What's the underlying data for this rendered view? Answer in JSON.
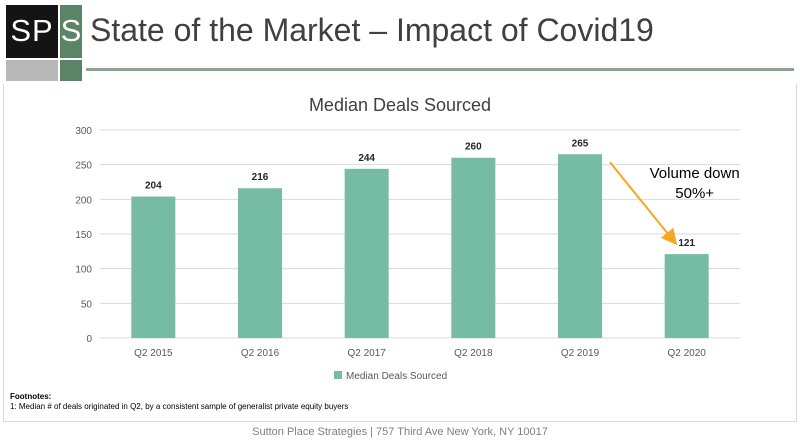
{
  "logo": {
    "left_text": "SP",
    "right_text": "S"
  },
  "slide_title": "State of the Market – Impact of Covid19",
  "chart_data": {
    "type": "bar",
    "title": "Median Deals Sourced",
    "categories": [
      "Q2 2015",
      "Q2 2016",
      "Q2 2017",
      "Q2 2018",
      "Q2 2019",
      "Q2 2020"
    ],
    "series": [
      {
        "name": "Median Deals Sourced",
        "values": [
          204,
          216,
          244,
          260,
          265,
          121
        ],
        "color": "#76bca4"
      }
    ],
    "ylim": [
      0,
      300
    ],
    "yticks": [
      0,
      50,
      100,
      150,
      200,
      250,
      300
    ],
    "xlabel": "",
    "ylabel": "",
    "grid": true,
    "legend": "bottom-center",
    "data_labels": true,
    "annotation": {
      "lines": [
        "Volume down",
        "50%+"
      ],
      "arrow_color": "#f5a623",
      "from_category": "Q2 2019",
      "to_category": "Q2 2020"
    }
  },
  "footnotes": {
    "heading": "Footnotes:",
    "lines": [
      "1: Median # of deals originated in Q2, by a consistent sample of generalist private equity buyers"
    ]
  },
  "footer": "Sutton Place Strategies | 757 Third Ave New York, NY 10017"
}
